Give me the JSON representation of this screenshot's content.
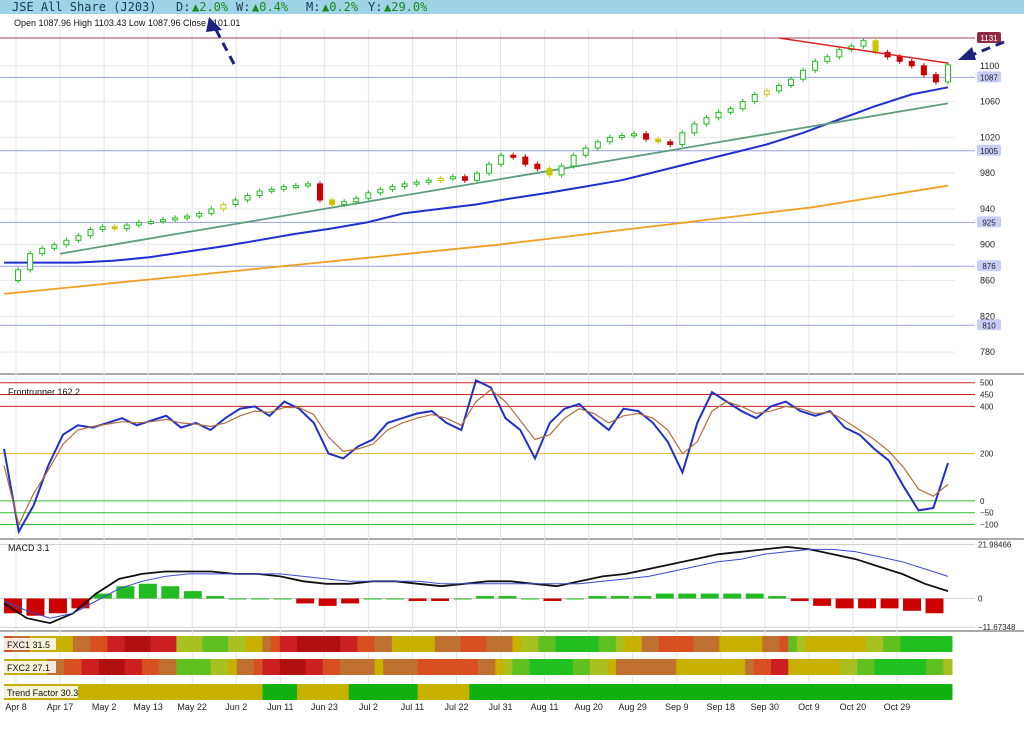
{
  "header": {
    "title": "JSE All Share (J203)",
    "d_label": "D:",
    "d_value": "▲2.0%",
    "w_label": "W:",
    "w_value": "▲0.4%",
    "m_label": "M:",
    "m_value": "▲0.2%",
    "y_label": "Y:",
    "y_value": "▲29.0%"
  },
  "ohlc_label": "Open 1087.96  High 1103.43  Low 1087.96  Close 1101.01",
  "colors": {
    "up": "#22bb22",
    "down": "#cc0000",
    "neutral": "#c8c800",
    "ma50": "#1f2fd0",
    "ma100": "#5e9e7e",
    "ma200": "#f0a020",
    "trend": "#dd2222",
    "arrow": "#1a237e"
  },
  "chart_data": [
    {
      "type": "candlestick",
      "title": "JSE All Share (J203)",
      "y_ticks": [
        "1100",
        "1060",
        "1020",
        "980",
        "940",
        "900",
        "860",
        "820",
        "780"
      ],
      "ylim": [
        760,
        1140
      ],
      "price_labels": [
        "1131",
        "1087",
        "1005",
        "925",
        "876",
        "810"
      ],
      "x_ticks": [
        "Apr 8",
        "Apr 17",
        "May 2",
        "May 13",
        "May 22",
        "Jun 2",
        "Jun 11",
        "Jun 23",
        "Jul 2",
        "Jul 11",
        "Jul 22",
        "Jul 31",
        "Aug 11",
        "Aug 20",
        "Aug 29",
        "Sep 9",
        "Sep 18",
        "Sep 30",
        "Oct 9",
        "Oct 20",
        "Oct 29"
      ],
      "close_path": [
        860,
        872,
        890,
        896,
        900,
        905,
        910,
        917,
        920,
        918,
        922,
        925,
        926,
        928,
        930,
        932,
        935,
        940,
        945,
        950,
        955,
        960,
        962,
        965,
        966,
        968,
        950,
        945,
        948,
        952,
        958,
        962,
        965,
        968,
        970,
        972,
        974,
        976,
        972,
        980,
        990,
        1000,
        998,
        990,
        985,
        978,
        988,
        1000,
        1008,
        1015,
        1020,
        1022,
        1024,
        1018,
        1015,
        1012,
        1025,
        1035,
        1042,
        1048,
        1052,
        1060,
        1068,
        1072,
        1078,
        1085,
        1095,
        1105,
        1110,
        1118,
        1122,
        1128,
        1115,
        1110,
        1105,
        1100,
        1090,
        1082,
        1101
      ],
      "ma_series": [
        {
          "name": "",
          "values": [
            880,
            880,
            880,
            882,
            886,
            892,
            898,
            905,
            912,
            918,
            925,
            935,
            940,
            945,
            952,
            958,
            965,
            972,
            982,
            992,
            1002,
            1012,
            1025,
            1040,
            1055,
            1068,
            1076
          ]
        },
        {
          "name": "",
          "values": [
            890,
            897,
            904,
            911,
            918,
            925,
            932,
            939,
            946,
            953,
            960,
            967,
            974,
            981,
            988,
            995,
            1002,
            1009,
            1016,
            1023,
            1030,
            1037,
            1044,
            1051,
            1058
          ]
        },
        {
          "name": "",
          "values": [
            845,
            850,
            855,
            860,
            865,
            870,
            875,
            880,
            885,
            890,
            895,
            900,
            906,
            912,
            918,
            924,
            930,
            936,
            942,
            950,
            958,
            966
          ]
        }
      ]
    },
    {
      "type": "line",
      "title": "Frontrunner 162.2",
      "y_ticks": [
        "500",
        "450",
        "400",
        "200",
        "0",
        "−50",
        "−100"
      ],
      "ylim": [
        -140,
        520
      ],
      "series": [
        {
          "name": "",
          "values": [
            220,
            -130,
            -20,
            150,
            280,
            320,
            310,
            330,
            350,
            320,
            340,
            360,
            310,
            330,
            300,
            350,
            390,
            400,
            360,
            420,
            390,
            330,
            200,
            180,
            230,
            260,
            330,
            350,
            370,
            380,
            330,
            300,
            510,
            480,
            350,
            300,
            180,
            330,
            390,
            410,
            350,
            300,
            390,
            380,
            330,
            250,
            120,
            330,
            460,
            420,
            380,
            350,
            400,
            420,
            380,
            360,
            380,
            310,
            280,
            220,
            170,
            60,
            -40,
            -30,
            160
          ]
        },
        {
          "name": "",
          "values": [
            150,
            -100,
            30,
            130,
            240,
            300,
            315,
            325,
            335,
            330,
            335,
            345,
            330,
            325,
            315,
            330,
            360,
            380,
            375,
            395,
            395,
            365,
            270,
            210,
            220,
            240,
            300,
            330,
            350,
            365,
            350,
            320,
            420,
            470,
            420,
            340,
            260,
            280,
            350,
            390,
            370,
            330,
            360,
            370,
            350,
            300,
            200,
            250,
            380,
            420,
            400,
            370,
            380,
            400,
            390,
            370,
            375,
            340,
            300,
            260,
            210,
            140,
            50,
            20,
            70
          ]
        }
      ]
    },
    {
      "type": "line",
      "title": "MACD 3.1",
      "y_ticks": [
        "21.98466",
        "0",
        "−11.67348"
      ],
      "ylim": [
        -12,
        23
      ],
      "series": [
        {
          "name": "",
          "values": [
            -2,
            -8,
            -10,
            -6,
            2,
            8,
            10,
            11,
            11,
            11,
            10,
            10,
            9,
            7,
            6,
            6,
            7,
            7,
            6,
            5,
            6,
            7,
            7,
            6,
            5,
            7,
            9,
            10,
            12,
            14,
            16,
            18,
            19,
            20,
            21,
            20,
            18,
            16,
            13,
            10,
            6,
            3
          ]
        },
        {
          "name": "",
          "values": [
            -1,
            -5,
            -8,
            -6,
            -1,
            4,
            7,
            9,
            10,
            10,
            10,
            10,
            10,
            9,
            8,
            7,
            7,
            7,
            7,
            6,
            6,
            6,
            6,
            6,
            6,
            6,
            7,
            8,
            9,
            11,
            13,
            15,
            16,
            18,
            19,
            20,
            20,
            19,
            17,
            15,
            12,
            9
          ]
        }
      ],
      "histogram": [
        -6,
        -7,
        -6,
        -4,
        2,
        5,
        6,
        5,
        3,
        1,
        0,
        0,
        0,
        -2,
        -3,
        -2,
        0,
        0,
        -1,
        -1,
        0,
        1,
        1,
        0,
        -1,
        0,
        1,
        1,
        1,
        2,
        2,
        2,
        2,
        2,
        1,
        -1,
        -3,
        -4,
        -4,
        -4,
        -5,
        -6
      ]
    },
    {
      "type": "heatmap",
      "title": "FXC1 31.5"
    },
    {
      "type": "heatmap",
      "title": "FXC2 27.1"
    },
    {
      "type": "heatmap",
      "title": "Trend Factor 30.3"
    }
  ]
}
